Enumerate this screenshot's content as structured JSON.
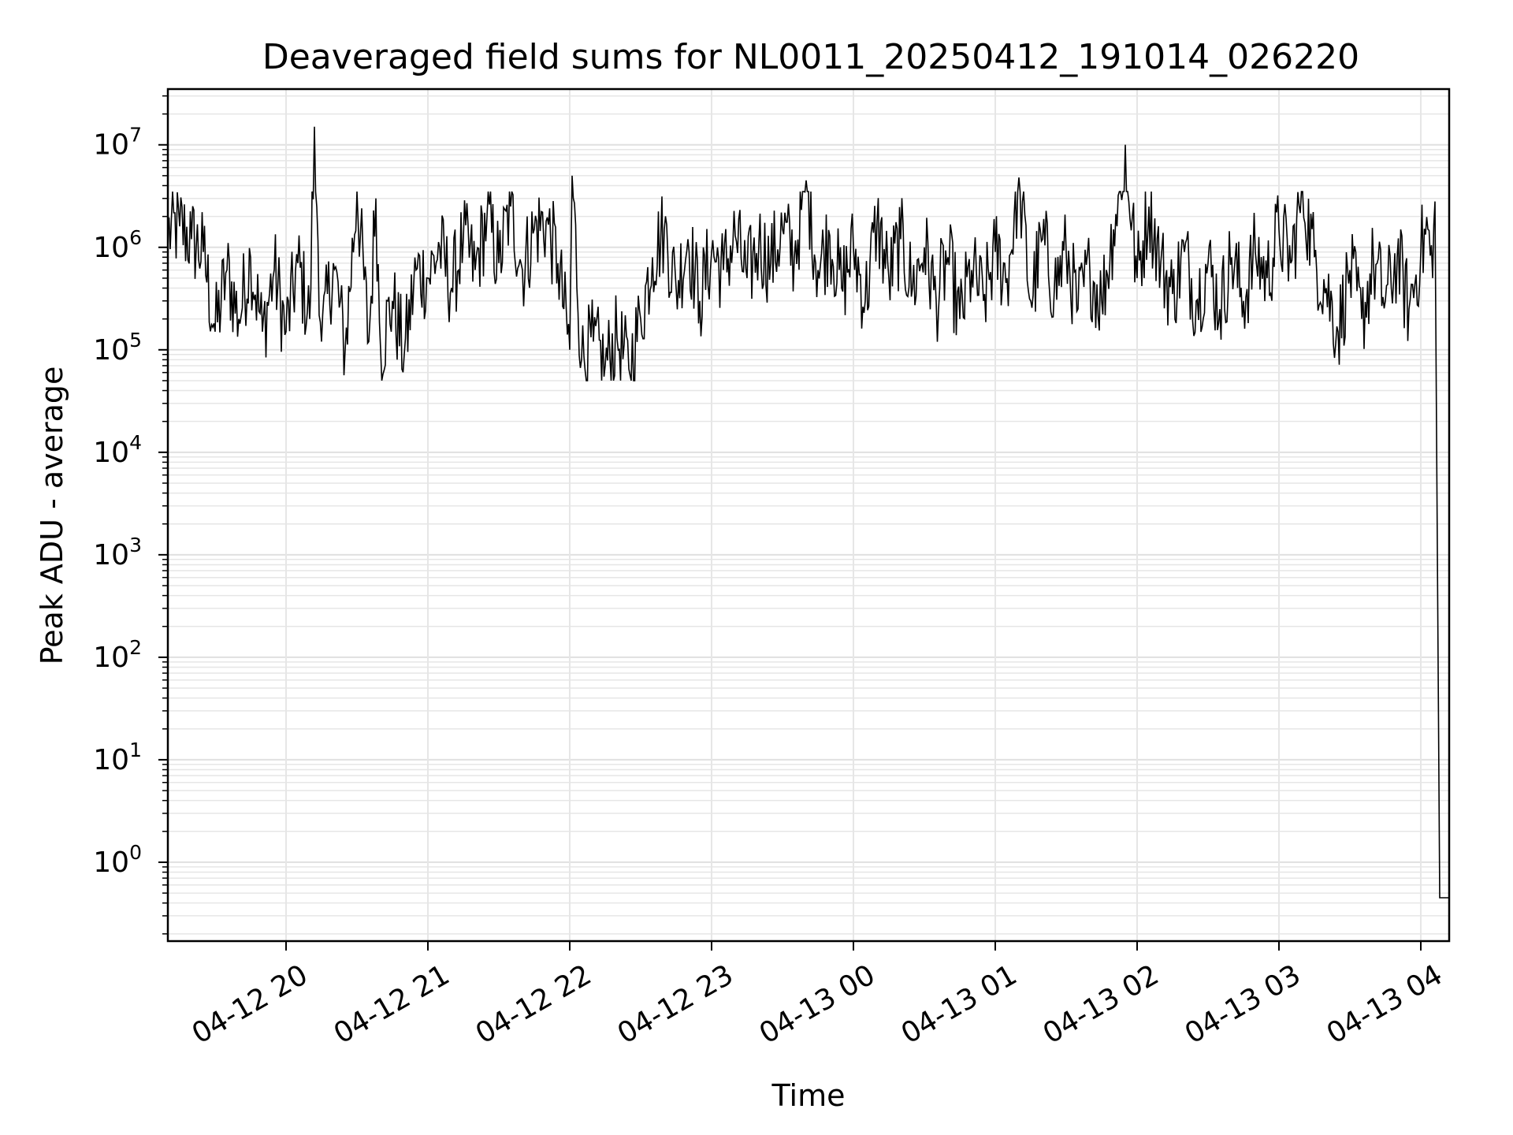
{
  "chart_data": {
    "type": "line",
    "title": "Deaveraged field sums for NL0011_20250412_191014_026220",
    "xlabel": "Time",
    "ylabel": "Peak ADU - average",
    "yscale": "log",
    "ylim": [
      0.17,
      35000000
    ],
    "xlim": [
      "04-12 19:10",
      "04-13 04:12"
    ],
    "grid": true,
    "line_color": "#000000",
    "x_ticks": [
      "04-12 20",
      "04-12 21",
      "04-12 22",
      "04-12 23",
      "04-13 00",
      "04-13 01",
      "04-13 02",
      "04-13 03",
      "04-13 04"
    ],
    "y_ticks": [
      {
        "base": "10",
        "exp": "0",
        "value": 1
      },
      {
        "base": "10",
        "exp": "1",
        "value": 10
      },
      {
        "base": "10",
        "exp": "2",
        "value": 100
      },
      {
        "base": "10",
        "exp": "3",
        "value": 1000
      },
      {
        "base": "10",
        "exp": "4",
        "value": 10000
      },
      {
        "base": "10",
        "exp": "5",
        "value": 100000
      },
      {
        "base": "10",
        "exp": "6",
        "value": 1000000
      },
      {
        "base": "10",
        "exp": "7",
        "value": 10000000
      }
    ],
    "series": [
      {
        "x": [
          "04-12 19:10",
          "04-12 19:15",
          "04-12 19:20",
          "04-12 19:25",
          "04-12 19:30",
          "04-12 19:35",
          "04-12 19:40",
          "04-12 19:45",
          "04-12 19:50",
          "04-12 19:55",
          "04-12 20:00",
          "04-12 20:05",
          "04-12 20:10",
          "04-12 20:12",
          "04-12 20:15",
          "04-12 20:20",
          "04-12 20:25",
          "04-12 20:30",
          "04-12 20:35",
          "04-12 20:38",
          "04-12 20:40",
          "04-12 20:45",
          "04-12 20:50",
          "04-12 20:55",
          "04-12 21:00",
          "04-12 21:05",
          "04-12 21:10",
          "04-12 21:15",
          "04-12 21:20",
          "04-12 21:25",
          "04-12 21:30",
          "04-12 21:35",
          "04-12 21:40",
          "04-12 21:45",
          "04-12 21:50",
          "04-12 21:55",
          "04-12 22:00",
          "04-12 22:01",
          "04-12 22:05",
          "04-12 22:10",
          "04-12 22:15",
          "04-12 22:20",
          "04-12 22:25",
          "04-12 22:30",
          "04-12 22:35",
          "04-12 22:40",
          "04-12 22:45",
          "04-12 22:50",
          "04-12 22:55",
          "04-12 23:00",
          "04-12 23:05",
          "04-12 23:10",
          "04-12 23:15",
          "04-12 23:20",
          "04-12 23:25",
          "04-12 23:30",
          "04-12 23:35",
          "04-12 23:40",
          "04-12 23:45",
          "04-12 23:50",
          "04-12 23:55",
          "04-13 00:00",
          "04-13 00:05",
          "04-13 00:10",
          "04-13 00:15",
          "04-13 00:20",
          "04-13 00:25",
          "04-13 00:30",
          "04-13 00:35",
          "04-13 00:40",
          "04-13 00:45",
          "04-13 00:50",
          "04-13 00:55",
          "04-13 01:00",
          "04-13 01:05",
          "04-13 01:10",
          "04-13 01:15",
          "04-13 01:20",
          "04-13 01:25",
          "04-13 01:30",
          "04-13 01:35",
          "04-13 01:40",
          "04-13 01:45",
          "04-13 01:50",
          "04-13 01:55",
          "04-13 02:00",
          "04-13 02:05",
          "04-13 02:10",
          "04-13 02:15",
          "04-13 02:20",
          "04-13 02:25",
          "04-13 02:30",
          "04-13 02:35",
          "04-13 02:40",
          "04-13 02:45",
          "04-13 02:50",
          "04-13 02:55",
          "04-13 03:00",
          "04-13 03:05",
          "04-13 03:10",
          "04-13 03:15",
          "04-13 03:20",
          "04-13 03:25",
          "04-13 03:30",
          "04-13 03:35",
          "04-13 03:40",
          "04-13 03:45",
          "04-13 03:50",
          "04-13 03:55",
          "04-13 04:00",
          "04-13 04:03",
          "04-13 04:05",
          "04-13 04:06",
          "04-13 04:08",
          "04-13 04:12"
        ],
        "values": [
          1400000,
          1600000,
          1200000,
          900000,
          150000,
          600000,
          200000,
          800000,
          150000,
          600000,
          150000,
          700000,
          200000,
          15000000,
          120000,
          700000,
          100000,
          3500000,
          120000,
          3000000,
          100000,
          300000,
          90000,
          600000,
          500000,
          1000000,
          400000,
          1200000,
          600000,
          2000000,
          700000,
          2500000,
          600000,
          1500000,
          1800000,
          700000,
          100000,
          5000000,
          80000,
          120000,
          70000,
          130000,
          65000,
          200000,
          800000,
          1500000,
          400000,
          1200000,
          300000,
          900000,
          600000,
          1300000,
          500000,
          1100000,
          700000,
          1500000,
          800000,
          4500000,
          600000,
          1300000,
          400000,
          1000000,
          300000,
          1800000,
          500000,
          1200000,
          400000,
          1000000,
          300000,
          800000,
          200000,
          600000,
          300000,
          900000,
          500000,
          4800000,
          300000,
          1200000,
          400000,
          900000,
          250000,
          600000,
          300000,
          1500000,
          10000000,
          500000,
          2500000,
          700000,
          350000,
          900000,
          300000,
          700000,
          250000,
          800000,
          300000,
          900000,
          500000,
          1500000,
          700000,
          3500000,
          800000,
          400000,
          150000,
          600000,
          200000,
          700000,
          300000,
          800000,
          250000,
          900000,
          1500000,
          500000,
          2800000,
          0.45,
          0.45
        ]
      }
    ]
  }
}
